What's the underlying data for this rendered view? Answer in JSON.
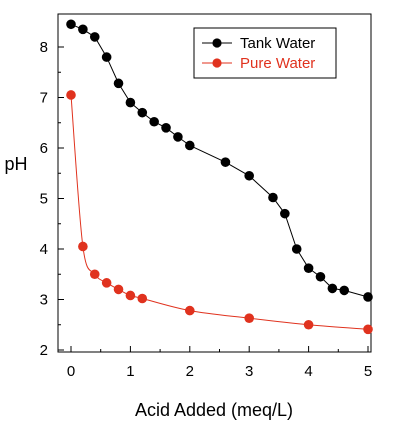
{
  "chart_data": {
    "type": "line",
    "xlabel": "Acid Added (meq/L)",
    "ylabel": "pH",
    "xlim": [
      0,
      5
    ],
    "ylim": [
      2,
      8.5
    ],
    "xticks": [
      "0",
      "1",
      "2",
      "3",
      "4",
      "5"
    ],
    "yticks": [
      "2",
      "3",
      "4",
      "5",
      "6",
      "7",
      "8"
    ],
    "grid": false,
    "legend_position": "top-right",
    "series": [
      {
        "name": "Tank Water",
        "color": "#000000",
        "x": [
          0,
          0.2,
          0.4,
          0.6,
          0.8,
          1.0,
          1.2,
          1.4,
          1.6,
          1.8,
          2.0,
          2.6,
          3.0,
          3.4,
          3.6,
          3.8,
          4.0,
          4.2,
          4.4,
          4.6,
          5.0
        ],
        "y": [
          8.45,
          8.35,
          8.2,
          7.8,
          7.28,
          6.9,
          6.7,
          6.52,
          6.4,
          6.22,
          6.05,
          5.72,
          5.45,
          5.02,
          4.7,
          4.0,
          3.62,
          3.45,
          3.22,
          3.18,
          3.05
        ]
      },
      {
        "name": "Pure Water",
        "color": "#e0321e",
        "x": [
          0,
          0.2,
          0.4,
          0.6,
          0.8,
          1.0,
          1.2,
          2.0,
          3.0,
          4.0,
          5.0
        ],
        "y": [
          7.05,
          4.05,
          3.5,
          3.33,
          3.2,
          3.08,
          3.02,
          2.78,
          2.63,
          2.5,
          2.41
        ]
      }
    ]
  }
}
